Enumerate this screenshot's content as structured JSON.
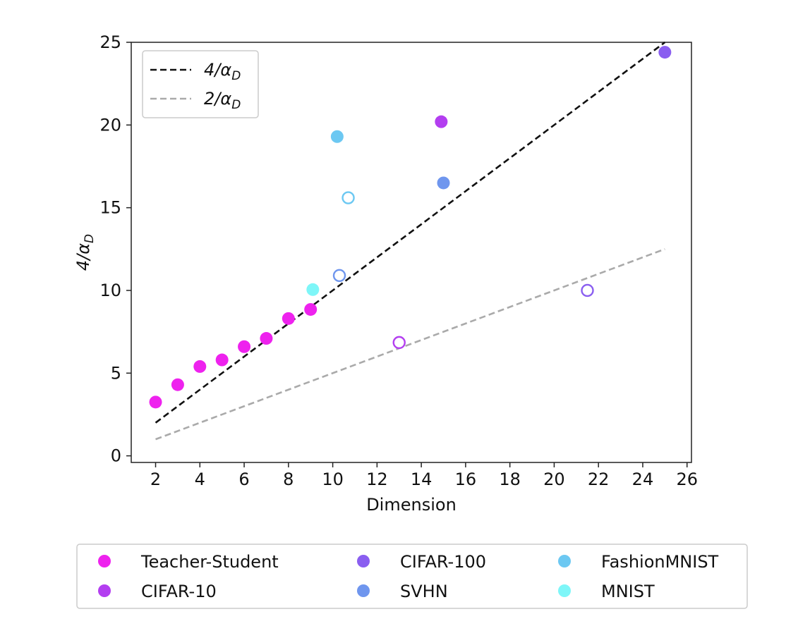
{
  "chart_data": {
    "type": "scatter",
    "xlabel": "Dimension",
    "ylabel": "4/αD",
    "xlim": [
      0.9,
      26.2
    ],
    "ylim": [
      -0.4,
      25
    ],
    "x_ticks": [
      2,
      4,
      6,
      8,
      10,
      12,
      14,
      16,
      18,
      20,
      22,
      24,
      26
    ],
    "y_ticks": [
      0,
      5,
      10,
      15,
      20,
      25
    ],
    "grid": false,
    "reference_lines": [
      {
        "name": "4/αD",
        "label_main": "4/α",
        "label_sub": "D",
        "x": [
          2,
          25
        ],
        "y": [
          2,
          25
        ],
        "style": "dashed",
        "color": "#111111"
      },
      {
        "name": "2/αD",
        "label_main": "2/α",
        "label_sub": "D",
        "x": [
          2,
          25
        ],
        "y": [
          1,
          12.5
        ],
        "style": "dashed",
        "color": "#aaaaaa"
      }
    ],
    "reference_legend_placement": "top-left",
    "series": [
      {
        "name": "Teacher-Student",
        "color": "#ee22ee",
        "points": [
          {
            "x": 2,
            "y": 3.25,
            "filled": true
          },
          {
            "x": 3,
            "y": 4.3,
            "filled": true
          },
          {
            "x": 4,
            "y": 5.4,
            "filled": true
          },
          {
            "x": 5,
            "y": 5.8,
            "filled": true
          },
          {
            "x": 6,
            "y": 6.6,
            "filled": true
          },
          {
            "x": 7,
            "y": 7.1,
            "filled": true
          },
          {
            "x": 8,
            "y": 8.3,
            "filled": true
          },
          {
            "x": 9,
            "y": 8.85,
            "filled": true
          }
        ]
      },
      {
        "name": "CIFAR-10",
        "color": "#b33ef0",
        "points": [
          {
            "x": 14.9,
            "y": 20.2,
            "filled": true
          },
          {
            "x": 13.0,
            "y": 6.85,
            "filled": false
          }
        ]
      },
      {
        "name": "CIFAR-100",
        "color": "#8a5ef0",
        "points": [
          {
            "x": 25.0,
            "y": 24.4,
            "filled": true
          },
          {
            "x": 21.5,
            "y": 10.0,
            "filled": false
          }
        ]
      },
      {
        "name": "SVHN",
        "color": "#6f96ee",
        "points": [
          {
            "x": 15.0,
            "y": 16.5,
            "filled": true
          },
          {
            "x": 10.3,
            "y": 10.9,
            "filled": false
          }
        ]
      },
      {
        "name": "FashionMNIST",
        "color": "#6cc8f2",
        "points": [
          {
            "x": 10.2,
            "y": 19.3,
            "filled": true
          },
          {
            "x": 10.7,
            "y": 15.6,
            "filled": false
          }
        ]
      },
      {
        "name": "MNIST",
        "color": "#7ef6f8",
        "points": [
          {
            "x": 9.1,
            "y": 10.05,
            "filled": true
          }
        ]
      }
    ],
    "legend_placement": "bottom",
    "legend_order": [
      "Teacher-Student",
      "CIFAR-10",
      "CIFAR-100",
      "SVHN",
      "FashionMNIST",
      "MNIST"
    ]
  }
}
